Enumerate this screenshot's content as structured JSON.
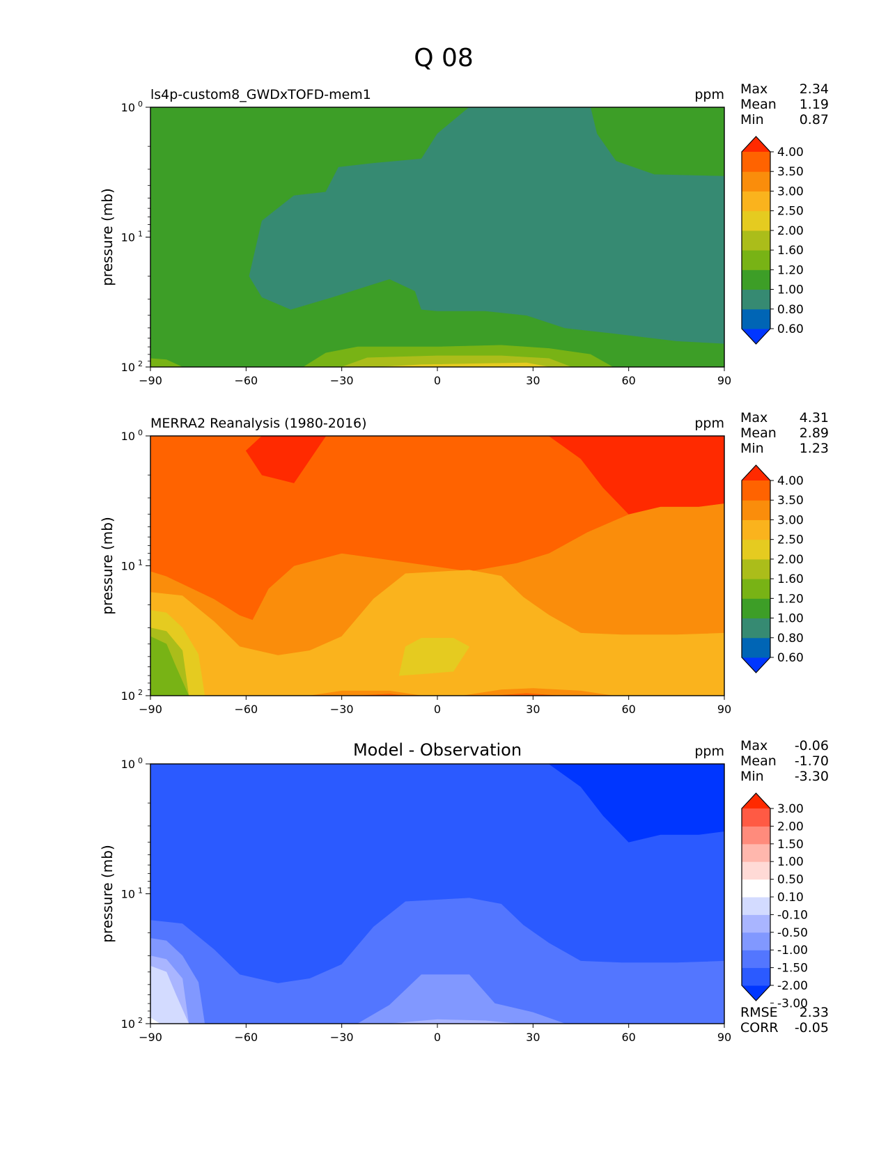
{
  "figure_title": "Q 08",
  "colors": {
    "abs": [
      "#0036ff",
      "#0065b5",
      "#368a72",
      "#3d9e27",
      "#78b315",
      "#abbd1a",
      "#e5cb20",
      "#fab31d",
      "#fa8d0b",
      "#ff6300",
      "#ff2a00"
    ],
    "diff": [
      "#0036ff",
      "#2b5aff",
      "#5376ff",
      "#8198ff",
      "#a9b5ff",
      "#d3dbff",
      "#ffffff",
      "#ffdad6",
      "#ffb7ad",
      "#ff8b7c",
      "#ff5a44",
      "#ff2a00"
    ]
  },
  "chart_data": [
    {
      "type": "contour",
      "title": "ls4p-custom8_GWDxTOFD-mem1",
      "units": "ppm",
      "xlabel": "",
      "ylabel": "pressure (mb)",
      "xlim": [
        -90,
        90
      ],
      "xticks": [
        -90,
        -60,
        -30,
        0,
        30,
        60,
        90
      ],
      "ylim": [
        100,
        1
      ],
      "yscale": "log",
      "yticks": [
        "10^0",
        "10^1",
        "10^2"
      ],
      "stats": [
        {
          "label": "Max",
          "value": "2.34"
        },
        {
          "label": "Mean",
          "value": "1.19"
        },
        {
          "label": "Min",
          "value": "0.87"
        }
      ],
      "colorbar": {
        "levels": [
          "4.00",
          "3.50",
          "3.00",
          "2.50",
          "2.00",
          "1.60",
          "1.20",
          "1.00",
          "0.80",
          "0.60"
        ],
        "palette": "abs"
      },
      "regions": [
        {
          "level": 3,
          "pts": [
            [
              -90,
              1
            ],
            [
              90,
              1
            ],
            [
              90,
              100
            ],
            [
              -90,
              100
            ]
          ]
        },
        {
          "level": 2,
          "pts": [
            [
              -59,
              20
            ],
            [
              -55,
              7.5
            ],
            [
              -45,
              4.8
            ],
            [
              -35,
              4.5
            ],
            [
              -31,
              2.9
            ],
            [
              -20,
              2.7
            ],
            [
              -5,
              2.5
            ],
            [
              0,
              1.6
            ],
            [
              10,
              1.0
            ],
            [
              48,
              1.0
            ],
            [
              50,
              1.6
            ],
            [
              56,
              2.6
            ],
            [
              68,
              3.3
            ],
            [
              90,
              3.4
            ],
            [
              90,
              66
            ],
            [
              75,
              63
            ],
            [
              55,
              55
            ],
            [
              40,
              50
            ],
            [
              28,
              40
            ],
            [
              15,
              37
            ],
            [
              0,
              37
            ],
            [
              -5,
              36
            ],
            [
              -7,
              26
            ],
            [
              -15,
              21
            ],
            [
              -33,
              29
            ],
            [
              -46,
              36
            ],
            [
              -55,
              29
            ]
          ]
        },
        {
          "level": 4,
          "pts": [
            [
              -90,
              86
            ],
            [
              -85,
              88
            ],
            [
              -80,
              100
            ],
            [
              -90,
              100
            ]
          ]
        },
        {
          "level": 4,
          "pts": [
            [
              -42,
              100
            ],
            [
              -35,
              78
            ],
            [
              -25,
              70
            ],
            [
              0,
              70
            ],
            [
              20,
              68
            ],
            [
              35,
              72
            ],
            [
              48,
              80
            ],
            [
              55,
              100
            ]
          ]
        },
        {
          "level": 5,
          "pts": [
            [
              -30,
              100
            ],
            [
              -22,
              85
            ],
            [
              0,
              82
            ],
            [
              20,
              82
            ],
            [
              35,
              86
            ],
            [
              42,
              100
            ]
          ]
        },
        {
          "level": 6,
          "pts": [
            [
              -18,
              100
            ],
            [
              -5,
              96
            ],
            [
              15,
              94
            ],
            [
              28,
              93
            ],
            [
              35,
              100
            ]
          ]
        }
      ]
    },
    {
      "type": "contour",
      "title": "MERRA2 Reanalysis (1980-2016)",
      "units": "ppm",
      "xlabel": "",
      "ylabel": "pressure (mb)",
      "xlim": [
        -90,
        90
      ],
      "xticks": [
        -90,
        -60,
        -30,
        0,
        30,
        60,
        90
      ],
      "ylim": [
        100,
        1
      ],
      "yscale": "log",
      "yticks": [
        "10^0",
        "10^1",
        "10^2"
      ],
      "stats": [
        {
          "label": "Max",
          "value": "4.31"
        },
        {
          "label": "Mean",
          "value": "2.89"
        },
        {
          "label": "Min",
          "value": "1.23"
        }
      ],
      "colorbar": {
        "levels": [
          "4.00",
          "3.50",
          "3.00",
          "2.50",
          "2.00",
          "1.60",
          "1.20",
          "1.00",
          "0.80",
          "0.60"
        ],
        "palette": "abs"
      },
      "regions": [
        {
          "level": 8,
          "pts": [
            [
              -90,
              1
            ],
            [
              90,
              1
            ],
            [
              90,
              100
            ],
            [
              -90,
              100
            ]
          ]
        },
        {
          "level": 9,
          "pts": [
            [
              -90,
              1
            ],
            [
              90,
              1
            ],
            [
              90,
              3.3
            ],
            [
              82,
              3.5
            ],
            [
              70,
              3.5
            ],
            [
              60,
              4.0
            ],
            [
              47,
              5.5
            ],
            [
              35,
              8
            ],
            [
              25,
              9.5
            ],
            [
              10,
              11
            ],
            [
              -15,
              9
            ],
            [
              -30,
              8
            ],
            [
              -45,
              10
            ],
            [
              -53,
              15
            ],
            [
              -58,
              26
            ],
            [
              -62,
              24
            ],
            [
              -70,
              18
            ],
            [
              -85,
              12
            ],
            [
              -90,
              11
            ]
          ]
        },
        {
          "level": 10,
          "pts": [
            [
              -55,
              1
            ],
            [
              -35,
              1
            ],
            [
              -45,
              2.3
            ],
            [
              -55,
              2.0
            ],
            [
              -60,
              1.3
            ]
          ]
        },
        {
          "level": 10,
          "pts": [
            [
              35,
              1
            ],
            [
              90,
              1
            ],
            [
              90,
              3.3
            ],
            [
              82,
              3.5
            ],
            [
              70,
              3.5
            ],
            [
              60,
              4.0
            ],
            [
              52,
              2.5
            ],
            [
              45,
              1.5
            ]
          ]
        },
        {
          "level": 7,
          "pts": [
            [
              -90,
              16
            ],
            [
              -80,
              17
            ],
            [
              -70,
              27
            ],
            [
              -62,
              42
            ],
            [
              -50,
              49
            ],
            [
              -40,
              45
            ],
            [
              -30,
              35
            ],
            [
              -20,
              18
            ],
            [
              -10,
              11.5
            ],
            [
              10,
              10.8
            ],
            [
              20,
              12
            ],
            [
              27,
              17.5
            ],
            [
              35,
              24
            ],
            [
              45,
              33
            ],
            [
              58,
              34
            ],
            [
              75,
              34
            ],
            [
              90,
              33
            ],
            [
              90,
              100
            ],
            [
              -90,
              100
            ]
          ]
        },
        {
          "level": 6,
          "pts": [
            [
              -90,
              22
            ],
            [
              -85,
              23
            ],
            [
              -80,
              30
            ],
            [
              -75,
              48
            ],
            [
              -73,
              100
            ],
            [
              -90,
              100
            ]
          ]
        },
        {
          "level": 5,
          "pts": [
            [
              -90,
              30
            ],
            [
              -85,
              32
            ],
            [
              -80,
              45
            ],
            [
              -78,
              100
            ],
            [
              -90,
              100
            ]
          ]
        },
        {
          "level": 4,
          "pts": [
            [
              -90,
              35
            ],
            [
              -85,
              40
            ],
            [
              -82,
              60
            ],
            [
              -78,
              100
            ],
            [
              -90,
              100
            ]
          ]
        },
        {
          "level": 6,
          "pts": [
            [
              -12,
              70
            ],
            [
              -10,
              42
            ],
            [
              -5,
              36
            ],
            [
              5,
              36
            ],
            [
              10,
              42
            ],
            [
              5,
              65
            ],
            [
              -5,
              68
            ]
          ]
        },
        {
          "level": 8,
          "pts": [
            [
              -40,
              100
            ],
            [
              -30,
              92
            ],
            [
              -15,
              92
            ],
            [
              -5,
              100
            ]
          ]
        },
        {
          "level": 8,
          "pts": [
            [
              8,
              100
            ],
            [
              20,
              90
            ],
            [
              30,
              88
            ],
            [
              45,
              92
            ],
            [
              55,
              100
            ]
          ]
        },
        {
          "level": 9,
          "pts": [
            [
              -25,
              100
            ],
            [
              -15,
              97
            ],
            [
              -10,
              100
            ]
          ]
        },
        {
          "level": 9,
          "pts": [
            [
              18,
              100
            ],
            [
              28,
              96
            ],
            [
              38,
              100
            ]
          ]
        }
      ]
    },
    {
      "type": "contour",
      "title": "Model - Observation",
      "units": "ppm",
      "xlabel": "",
      "ylabel": "pressure (mb)",
      "xlim": [
        -90,
        90
      ],
      "xticks": [
        -90,
        -60,
        -30,
        0,
        30,
        60,
        90
      ],
      "ylim": [
        100,
        1
      ],
      "yscale": "log",
      "yticks": [
        "10^0",
        "10^1",
        "10^2"
      ],
      "stats": [
        {
          "label": "Max",
          "value": "-0.06"
        },
        {
          "label": "Mean",
          "value": "-1.70"
        },
        {
          "label": "Min",
          "value": "-3.30"
        }
      ],
      "extra_stats": [
        {
          "label": "RMSE",
          "value": "2.33"
        },
        {
          "label": "CORR",
          "value": "-0.05"
        }
      ],
      "colorbar": {
        "levels": [
          "3.00",
          "2.00",
          "1.50",
          "1.00",
          "0.50",
          "0.10",
          "-0.10",
          "-0.50",
          "-1.00",
          "-1.50",
          "-2.00",
          "-3.00"
        ],
        "palette": "diff"
      },
      "regions": [
        {
          "level": 1,
          "pts": [
            [
              -90,
              1
            ],
            [
              90,
              1
            ],
            [
              90,
              100
            ],
            [
              -90,
              100
            ]
          ]
        },
        {
          "level": 0,
          "pts": [
            [
              35,
              1
            ],
            [
              90,
              1
            ],
            [
              90,
              3.3
            ],
            [
              82,
              3.5
            ],
            [
              70,
              3.5
            ],
            [
              60,
              4.0
            ],
            [
              52,
              2.5
            ],
            [
              45,
              1.5
            ]
          ]
        },
        {
          "level": 2,
          "pts": [
            [
              -90,
              16
            ],
            [
              -80,
              17
            ],
            [
              -70,
              27
            ],
            [
              -62,
              42
            ],
            [
              -50,
              49
            ],
            [
              -40,
              45
            ],
            [
              -30,
              35
            ],
            [
              -20,
              18
            ],
            [
              -10,
              11.5
            ],
            [
              10,
              10.8
            ],
            [
              20,
              12
            ],
            [
              27,
              17.5
            ],
            [
              35,
              24
            ],
            [
              45,
              33
            ],
            [
              58,
              34
            ],
            [
              75,
              34
            ],
            [
              90,
              33
            ],
            [
              90,
              100
            ],
            [
              -90,
              100
            ]
          ]
        },
        {
          "level": 3,
          "pts": [
            [
              -90,
              22
            ],
            [
              -85,
              23
            ],
            [
              -80,
              30
            ],
            [
              -75,
              48
            ],
            [
              -73,
              100
            ],
            [
              -90,
              100
            ]
          ]
        },
        {
          "level": 3,
          "pts": [
            [
              -25,
              100
            ],
            [
              -15,
              72
            ],
            [
              -5,
              42
            ],
            [
              10,
              42
            ],
            [
              18,
              70
            ],
            [
              30,
              82
            ],
            [
              40,
              100
            ]
          ]
        },
        {
          "level": 4,
          "pts": [
            [
              -90,
              30
            ],
            [
              -85,
              32
            ],
            [
              -80,
              45
            ],
            [
              -78,
              100
            ],
            [
              -90,
              100
            ]
          ]
        },
        {
          "level": 4,
          "pts": [
            [
              -15,
              100
            ],
            [
              0,
              93
            ],
            [
              15,
              95
            ],
            [
              25,
              100
            ]
          ]
        },
        {
          "level": 5,
          "pts": [
            [
              -90,
              36
            ],
            [
              -85,
              40
            ],
            [
              -82,
              60
            ],
            [
              -78,
              100
            ],
            [
              -90,
              100
            ]
          ]
        },
        {
          "level": 6,
          "pts": [
            [
              -90,
              90
            ],
            [
              -88,
              97
            ],
            [
              -87,
              100
            ],
            [
              -90,
              100
            ]
          ]
        }
      ]
    }
  ]
}
